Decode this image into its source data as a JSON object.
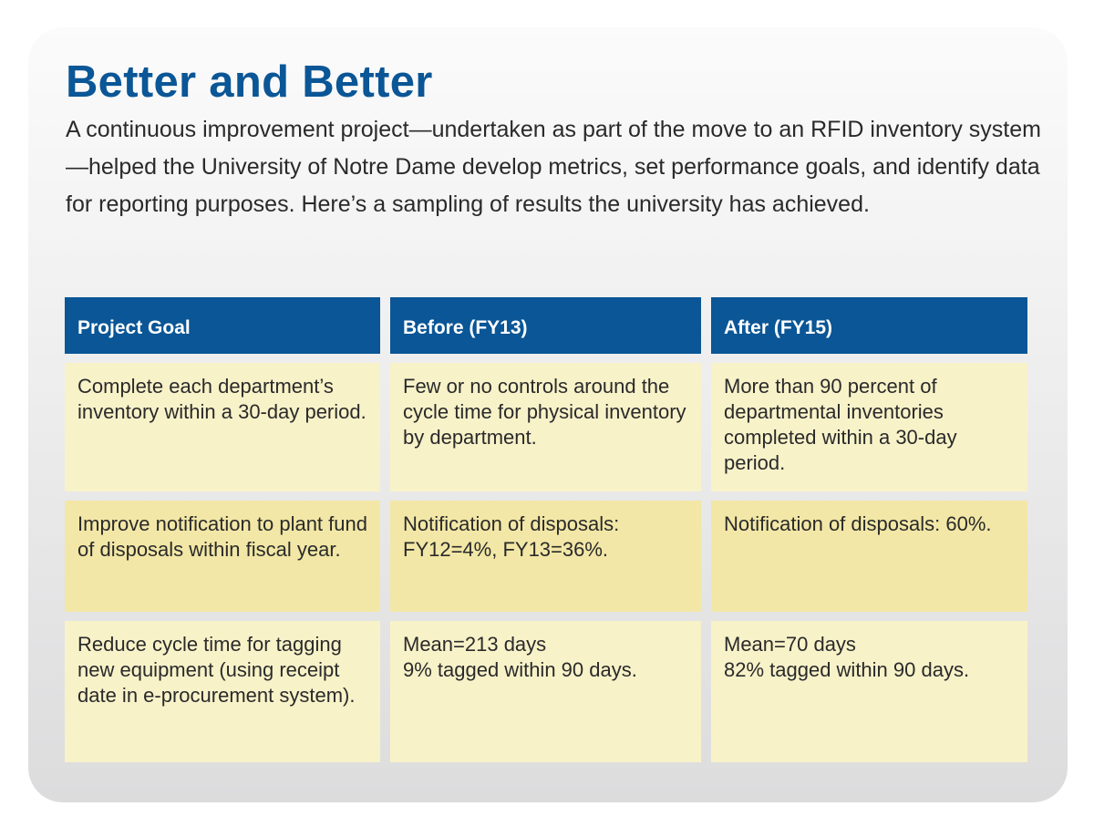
{
  "title": "Better and Better",
  "intro": "A continuous improvement project—undertaken as part of the move to an RFID inventory system—helped the University of Notre Dame develop metrics, set performance goals, and identify data for reporting purposes. Here’s a sampling of results the university has achieved.",
  "colors": {
    "header_blue": "#0a5696",
    "row_light": "#f8f2c9",
    "row_dark": "#f2e7a6"
  },
  "table": {
    "headers": [
      "Project Goal",
      "Before (FY13)",
      "After (FY15)"
    ],
    "rows": [
      {
        "goal": "Complete each department’s inventory within a 30-day period.",
        "before": "Few or no controls around the cycle time for physical inventory by department.",
        "after": "More than 90 percent of departmental inventories completed within a 30-day period."
      },
      {
        "goal": "Improve notification to plant fund of disposals within fiscal year.",
        "before": "Notification of disposals: FY12=4%, FY13=36%.",
        "after": "Notification of disposals: 60%."
      },
      {
        "goal": "Reduce cycle time for tagging new equipment (using receipt date in e-procurement system).",
        "before": "Mean=213 days\n9% tagged within 90 days.",
        "after": "Mean=70 days\n82% tagged within 90 days."
      }
    ]
  }
}
